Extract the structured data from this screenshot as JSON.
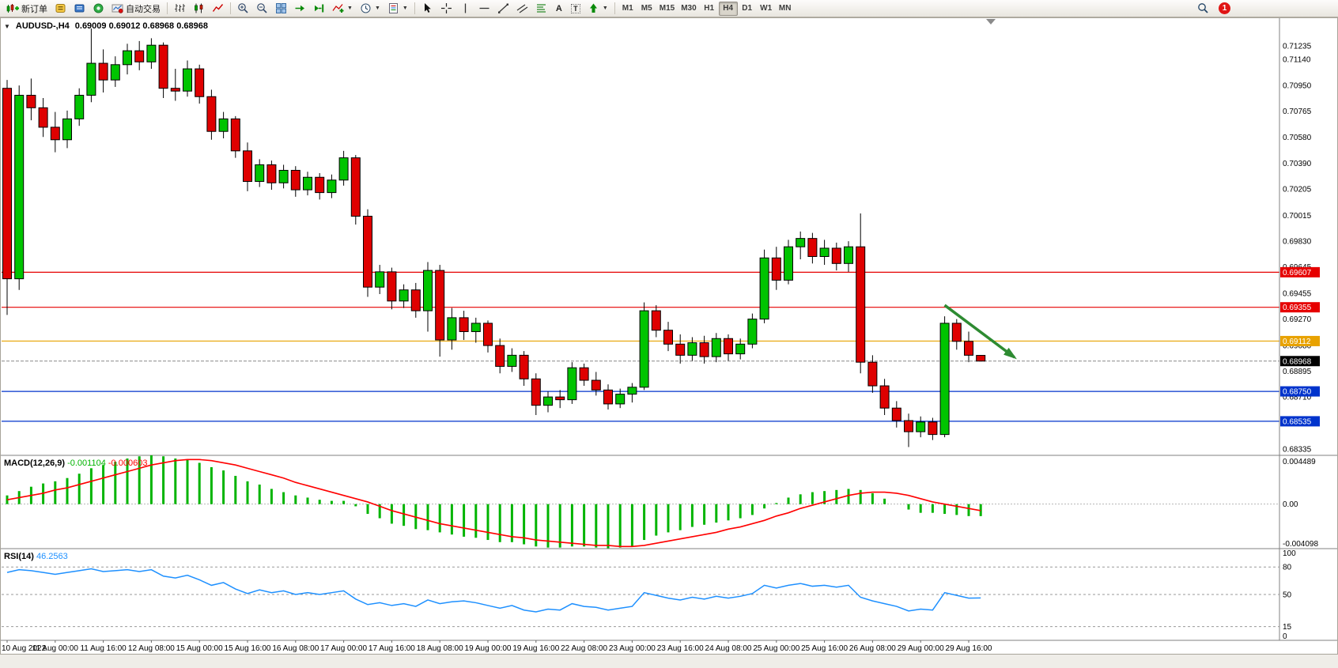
{
  "toolbar": {
    "new_order_label": "新订单",
    "autotrading_label": "自动交易",
    "timeframes": [
      "M1",
      "M5",
      "M15",
      "M30",
      "H1",
      "H4",
      "D1",
      "W1",
      "MN"
    ],
    "active_timeframe": "H4",
    "notification_count": "1"
  },
  "chart": {
    "one_click_arrow": "▼",
    "symbol_title": "AUDUSD-,H4",
    "ohlc_text": "0.69009 0.69012 0.68968 0.68968"
  },
  "indicators": {
    "macd_name": "MACD(12,26,9)",
    "macd_main_value": "-0.001104",
    "macd_signal_value": "-0.000603",
    "rsi_name": "RSI(14)",
    "rsi_value": "46.2563"
  },
  "colors": {
    "bull_candle": "#00c400",
    "bear_candle": "#df0000",
    "candle_outline": "#000000",
    "macd_histogram": "#00b400",
    "macd_signal": "#ff0000",
    "rsi_line": "#1e90ff",
    "level_red": "#e60000",
    "level_gold": "#e8a200",
    "level_blue": "#0033cc",
    "current_price_tag": "#000000",
    "arrow": "#2e8b32"
  },
  "chart_data": {
    "type": "candlestick",
    "symbol": "AUDUSD-",
    "timeframe": "H4",
    "price_range": [
      0.6829,
      0.7144
    ],
    "price_axis_labels": [
      "0.71235",
      "0.71140",
      "0.70950",
      "0.70765",
      "0.70580",
      "0.70390",
      "0.70205",
      "0.70015",
      "0.69830",
      "0.69645",
      "0.69455",
      "0.69270",
      "0.69080",
      "0.68895",
      "0.68710",
      "0.68520",
      "0.68335"
    ],
    "time_labels": [
      "10 Aug 2022",
      "11 Aug 00:00",
      "11 Aug 16:00",
      "12 Aug 08:00",
      "15 Aug 00:00",
      "15 Aug 16:00",
      "16 Aug 08:00",
      "17 Aug 00:00",
      "17 Aug 16:00",
      "18 Aug 08:00",
      "19 Aug 00:00",
      "19 Aug 16:00",
      "22 Aug 08:00",
      "23 Aug 00:00",
      "23 Aug 16:00",
      "24 Aug 08:00",
      "25 Aug 00:00",
      "25 Aug 16:00",
      "26 Aug 08:00",
      "29 Aug 00:00",
      "29 Aug 16:00"
    ],
    "label_every_n_candles": 4,
    "candles": [
      [
        0.7093,
        0.7099,
        0.693,
        0.6956
      ],
      [
        0.6956,
        0.7095,
        0.6948,
        0.7088
      ],
      [
        0.7088,
        0.71,
        0.707,
        0.7079
      ],
      [
        0.7079,
        0.7086,
        0.7058,
        0.7065
      ],
      [
        0.7065,
        0.7076,
        0.7047,
        0.7056
      ],
      [
        0.7056,
        0.7077,
        0.705,
        0.7071
      ],
      [
        0.7071,
        0.7093,
        0.7066,
        0.7088
      ],
      [
        0.7088,
        0.7136,
        0.7083,
        0.7111
      ],
      [
        0.7111,
        0.7121,
        0.709,
        0.7099
      ],
      [
        0.7099,
        0.7116,
        0.7094,
        0.711
      ],
      [
        0.711,
        0.7125,
        0.7103,
        0.712
      ],
      [
        0.712,
        0.7127,
        0.7106,
        0.7112
      ],
      [
        0.7112,
        0.7129,
        0.7107,
        0.7124
      ],
      [
        0.7124,
        0.7126,
        0.7086,
        0.7093
      ],
      [
        0.7093,
        0.7107,
        0.7084,
        0.7091
      ],
      [
        0.7091,
        0.7113,
        0.7087,
        0.7107
      ],
      [
        0.7107,
        0.711,
        0.7082,
        0.7087
      ],
      [
        0.7087,
        0.7092,
        0.7056,
        0.7062
      ],
      [
        0.7062,
        0.7076,
        0.7057,
        0.7071
      ],
      [
        0.7071,
        0.7073,
        0.7043,
        0.7048
      ],
      [
        0.7048,
        0.7054,
        0.7019,
        0.7026
      ],
      [
        0.7026,
        0.7042,
        0.7022,
        0.7038
      ],
      [
        0.7038,
        0.7041,
        0.702,
        0.7025
      ],
      [
        0.7025,
        0.7038,
        0.7021,
        0.7034
      ],
      [
        0.7034,
        0.7037,
        0.7015,
        0.702
      ],
      [
        0.702,
        0.7033,
        0.7016,
        0.7029
      ],
      [
        0.7029,
        0.7032,
        0.7013,
        0.7018
      ],
      [
        0.7018,
        0.7031,
        0.7014,
        0.7027
      ],
      [
        0.7027,
        0.7048,
        0.7023,
        0.7043
      ],
      [
        0.7043,
        0.7045,
        0.6995,
        0.7001
      ],
      [
        0.7001,
        0.7006,
        0.6943,
        0.695
      ],
      [
        0.695,
        0.6966,
        0.6945,
        0.6961
      ],
      [
        0.6961,
        0.6964,
        0.6934,
        0.694
      ],
      [
        0.694,
        0.6952,
        0.6935,
        0.6948
      ],
      [
        0.6948,
        0.6953,
        0.6928,
        0.6933
      ],
      [
        0.6933,
        0.6968,
        0.6918,
        0.6962
      ],
      [
        0.6962,
        0.6966,
        0.69,
        0.6912
      ],
      [
        0.6912,
        0.6935,
        0.6905,
        0.6928
      ],
      [
        0.6928,
        0.6933,
        0.6912,
        0.6918
      ],
      [
        0.6918,
        0.6928,
        0.691,
        0.6924
      ],
      [
        0.6924,
        0.6926,
        0.6903,
        0.6908
      ],
      [
        0.6908,
        0.6913,
        0.6888,
        0.6893
      ],
      [
        0.6893,
        0.6906,
        0.6889,
        0.6901
      ],
      [
        0.6901,
        0.6904,
        0.6879,
        0.6884
      ],
      [
        0.6884,
        0.6888,
        0.6858,
        0.6865
      ],
      [
        0.6865,
        0.6875,
        0.686,
        0.6871
      ],
      [
        0.6871,
        0.6876,
        0.6863,
        0.6869
      ],
      [
        0.6869,
        0.6896,
        0.6866,
        0.6892
      ],
      [
        0.6892,
        0.6895,
        0.6879,
        0.6883
      ],
      [
        0.6883,
        0.6889,
        0.6872,
        0.6876
      ],
      [
        0.6876,
        0.688,
        0.6862,
        0.6866
      ],
      [
        0.6866,
        0.6877,
        0.6863,
        0.6873
      ],
      [
        0.6873,
        0.6881,
        0.6867,
        0.6878
      ],
      [
        0.6878,
        0.6939,
        0.6876,
        0.6933
      ],
      [
        0.6933,
        0.6937,
        0.6914,
        0.6919
      ],
      [
        0.6919,
        0.6925,
        0.6904,
        0.6909
      ],
      [
        0.6909,
        0.6916,
        0.6895,
        0.6901
      ],
      [
        0.6901,
        0.6914,
        0.6897,
        0.691
      ],
      [
        0.691,
        0.6915,
        0.6895,
        0.69
      ],
      [
        0.69,
        0.6917,
        0.6896,
        0.6913
      ],
      [
        0.6913,
        0.6916,
        0.6897,
        0.6902
      ],
      [
        0.6902,
        0.6913,
        0.6898,
        0.6909
      ],
      [
        0.6909,
        0.6931,
        0.6906,
        0.6927
      ],
      [
        0.6927,
        0.6977,
        0.6924,
        0.6971
      ],
      [
        0.6971,
        0.6979,
        0.6948,
        0.6955
      ],
      [
        0.6955,
        0.6984,
        0.6952,
        0.6979
      ],
      [
        0.6979,
        0.699,
        0.697,
        0.6985
      ],
      [
        0.6985,
        0.6989,
        0.6967,
        0.6972
      ],
      [
        0.6972,
        0.6984,
        0.6966,
        0.6978
      ],
      [
        0.6978,
        0.6982,
        0.6962,
        0.6967
      ],
      [
        0.6967,
        0.6983,
        0.6961,
        0.6979
      ],
      [
        0.6979,
        0.7003,
        0.6888,
        0.6896
      ],
      [
        0.6896,
        0.6901,
        0.6874,
        0.6879
      ],
      [
        0.6879,
        0.6884,
        0.6858,
        0.6863
      ],
      [
        0.6863,
        0.6868,
        0.6849,
        0.6854
      ],
      [
        0.6854,
        0.6859,
        0.6835,
        0.6846
      ],
      [
        0.6846,
        0.6857,
        0.6842,
        0.6853
      ],
      [
        0.6853,
        0.6856,
        0.684,
        0.6844
      ],
      [
        0.6844,
        0.6929,
        0.6842,
        0.6924
      ],
      [
        0.6924,
        0.6927,
        0.6905,
        0.6911
      ],
      [
        0.6911,
        0.6918,
        0.6896,
        0.6901
      ],
      [
        0.69009,
        0.69012,
        0.68968,
        0.68968
      ]
    ],
    "hlines": [
      {
        "price": 0.69607,
        "label": "0.69607",
        "color": "#e60000"
      },
      {
        "price": 0.69355,
        "label": "0.69355",
        "color": "#e60000"
      },
      {
        "price": 0.69112,
        "label": "0.69112",
        "color": "#e8a200"
      },
      {
        "price": 0.6875,
        "label": "0.68750",
        "color": "#0033cc"
      },
      {
        "price": 0.68535,
        "label": "0.68535",
        "color": "#0033cc"
      }
    ],
    "current_price": {
      "price": 0.68968,
      "label": "0.68968"
    },
    "arrow_annotation": {
      "x1_index": 78,
      "price1": 0.6937,
      "x2_index": 83.8,
      "price2": 0.68995
    },
    "macd": {
      "range": [
        -0.004098,
        0.004489
      ],
      "axis_labels": [
        "0.004489",
        "0.00",
        "-0.004098"
      ],
      "histogram": [
        0.0008,
        0.0012,
        0.0016,
        0.0019,
        0.0021,
        0.0024,
        0.0028,
        0.0033,
        0.0036,
        0.0039,
        0.0042,
        0.0044,
        0.004489,
        0.0044,
        0.0042,
        0.0041,
        0.0038,
        0.0034,
        0.0031,
        0.0026,
        0.0021,
        0.0018,
        0.0014,
        0.0011,
        0.0008,
        0.0006,
        0.0004,
        0.0003,
        0.0003,
        -0.0002,
        -0.0009,
        -0.0013,
        -0.0018,
        -0.002,
        -0.0023,
        -0.0024,
        -0.0026,
        -0.0028,
        -0.003,
        -0.0031,
        -0.0033,
        -0.0035,
        -0.0035,
        -0.0037,
        -0.0039,
        -0.004,
        -0.004,
        -0.0039,
        -0.0039,
        -0.004,
        -0.004098,
        -0.004,
        -0.0039,
        -0.0033,
        -0.0029,
        -0.0026,
        -0.0024,
        -0.0021,
        -0.0019,
        -0.0017,
        -0.0015,
        -0.0013,
        -0.001,
        -0.0004,
        0.0001,
        0.0006,
        0.0009,
        0.0011,
        0.0012,
        0.0013,
        0.0014,
        0.0013,
        0.001,
        0.0005,
        0.0,
        -0.0005,
        -0.0008,
        -0.0008,
        -0.0009,
        -0.001,
        -0.0011,
        -0.001104
      ],
      "signal": [
        0.0004,
        0.0006,
        0.0008,
        0.001,
        0.0013,
        0.0015,
        0.0018,
        0.0021,
        0.0024,
        0.0027,
        0.003,
        0.0033,
        0.0036,
        0.0038,
        0.004,
        0.0041,
        0.0041,
        0.004,
        0.0038,
        0.0036,
        0.0033,
        0.003,
        0.0027,
        0.0024,
        0.002,
        0.0017,
        0.0014,
        0.0011,
        0.0008,
        0.0005,
        0.0002,
        -0.0002,
        -0.0006,
        -0.0009,
        -0.0012,
        -0.0015,
        -0.0018,
        -0.002,
        -0.0022,
        -0.0024,
        -0.0026,
        -0.0028,
        -0.003,
        -0.0031,
        -0.0033,
        -0.0034,
        -0.0035,
        -0.0036,
        -0.0037,
        -0.0038,
        -0.0038,
        -0.0039,
        -0.0039,
        -0.0038,
        -0.0036,
        -0.0034,
        -0.0032,
        -0.003,
        -0.0028,
        -0.0026,
        -0.0023,
        -0.0021,
        -0.0018,
        -0.0015,
        -0.0011,
        -0.0008,
        -0.0004,
        -0.0001,
        0.0002,
        0.0005,
        0.0008,
        0.001,
        0.0011,
        0.0011,
        0.001,
        0.0008,
        0.0005,
        0.0002,
        0.0,
        -0.0002,
        -0.0004,
        -0.000603
      ]
    },
    "rsi": {
      "range": [
        0,
        100
      ],
      "axis_labels": [
        100,
        80,
        50,
        15,
        0
      ],
      "levels": [
        80,
        50,
        15
      ],
      "values": [
        74,
        77,
        76,
        74,
        72,
        74,
        76,
        78,
        75,
        76,
        77,
        75,
        77,
        70,
        68,
        71,
        66,
        60,
        63,
        56,
        51,
        55,
        52,
        54,
        50,
        52,
        50,
        52,
        54,
        45,
        39,
        41,
        38,
        40,
        37,
        44,
        40,
        42,
        43,
        41,
        38,
        35,
        38,
        33,
        31,
        34,
        33,
        40,
        37,
        36,
        33,
        35,
        37,
        52,
        49,
        46,
        44,
        47,
        45,
        48,
        46,
        48,
        51,
        60,
        57,
        60,
        62,
        59,
        60,
        58,
        60,
        47,
        43,
        40,
        37,
        32,
        34,
        33,
        52,
        49,
        46,
        46.26
      ]
    }
  }
}
